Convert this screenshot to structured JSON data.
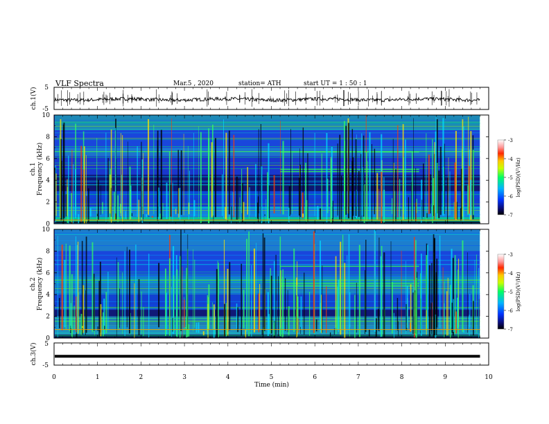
{
  "header": {
    "title": "VLF  Spectra",
    "date": "Mar.5  , 2020",
    "station": "station= ATH",
    "start_ut": "start  UT  =    1  : 50 : 1"
  },
  "chart_data": [
    {
      "type": "line",
      "id": "ch1-waveform",
      "ylabel": "ch.1(V)",
      "ylim": [
        -5,
        5
      ],
      "yticks": [
        "5",
        "-5"
      ],
      "xlim": [
        0,
        10
      ],
      "baseline": -0.5,
      "x_end": 9.8,
      "color": "#000000"
    },
    {
      "type": "heatmap",
      "id": "ch1-spectrogram",
      "ylabel_channel": "ch.1",
      "ylabel": "Frequency  (kHz)",
      "ylim": [
        0,
        10
      ],
      "yticks": [
        "0",
        "2",
        "4",
        "6",
        "8",
        "10"
      ],
      "xlim": [
        0,
        10
      ],
      "x_end": 9.8,
      "colorbar": {
        "label": "log(PSD)(V²/Hz)",
        "range": [
          -7,
          -3
        ],
        "ticks": [
          "-3",
          "-4",
          "-5",
          "-6",
          "-7"
        ]
      }
    },
    {
      "type": "heatmap",
      "id": "ch2-spectrogram",
      "ylabel_channel": "ch.2",
      "ylabel": "Frequency  (kHz)",
      "ylim": [
        0,
        10
      ],
      "yticks": [
        "0",
        "2",
        "4",
        "6",
        "8",
        "10"
      ],
      "xlim": [
        0,
        10
      ],
      "x_end": 9.8,
      "colorbar": {
        "label": "log(PSD)(V²/Hz)",
        "range": [
          -7,
          -3
        ],
        "ticks": [
          "-3",
          "-4",
          "-5",
          "-6",
          "-7"
        ]
      }
    },
    {
      "type": "line",
      "id": "ch3-waveform",
      "ylabel": "ch.3(V)",
      "ylim": [
        -5,
        5
      ],
      "yticks": [
        "5",
        "-5"
      ],
      "xlim": [
        0,
        10
      ],
      "baseline": -1.0,
      "x_end": 9.8,
      "color": "#000000"
    }
  ],
  "x_axis": {
    "label": "Time  (min)",
    "ticks": [
      "0",
      "1",
      "2",
      "3",
      "4",
      "5",
      "6",
      "7",
      "8",
      "9",
      "10"
    ]
  },
  "colors": {
    "background": "#ffffff",
    "axis": "#000000"
  }
}
